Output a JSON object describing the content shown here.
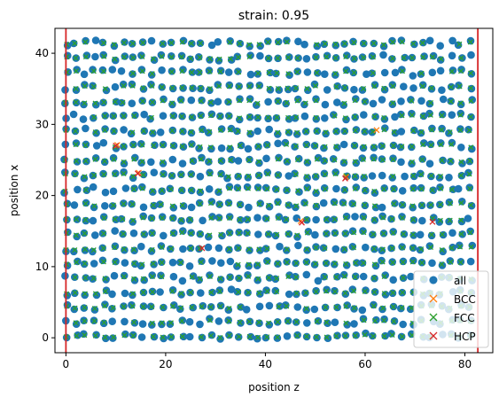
{
  "chart_data": {
    "type": "scatter",
    "title": "strain: 0.95",
    "xlabel": "position z",
    "ylabel": "position x",
    "xlim": [
      -2.2,
      85.6
    ],
    "ylim": [
      -2.1,
      43.5
    ],
    "xticks": [
      0,
      20,
      40,
      60,
      80
    ],
    "yticks": [
      0,
      10,
      20,
      30,
      40
    ],
    "grid": false,
    "legend_position": "lower right",
    "vertical_lines": {
      "x": [
        0,
        82.6
      ],
      "color": "#d62728"
    },
    "lattice": {
      "x_start": 0.0,
      "x_end": 82.6,
      "x_step": 1.93,
      "y_start": 0.2,
      "y_end": 41.5,
      "y_step": 2.06
    },
    "series": [
      {
        "name": "all",
        "marker": "o",
        "color": "#1f77b4",
        "description": "atoms filling lattice rows"
      },
      {
        "name": "BCC",
        "marker": "x",
        "color": "#ff7f0e",
        "points": [
          [
            10.3,
            27.1
          ],
          [
            14.6,
            23.2
          ],
          [
            56.2,
            22.6
          ],
          [
            47.1,
            16.4
          ],
          [
            62.3,
            29.2
          ]
        ]
      },
      {
        "name": "FCC",
        "marker": "x",
        "color": "#2ca02c",
        "description": "most lattice sites"
      },
      {
        "name": "HCP",
        "marker": "x",
        "color": "#d62728",
        "points": [
          [
            14.4,
            23.1
          ],
          [
            10.0,
            27.0
          ],
          [
            47.3,
            16.2
          ],
          [
            73.5,
            16.3
          ],
          [
            56.0,
            22.4
          ],
          [
            27.3,
            12.6
          ]
        ]
      }
    ]
  }
}
